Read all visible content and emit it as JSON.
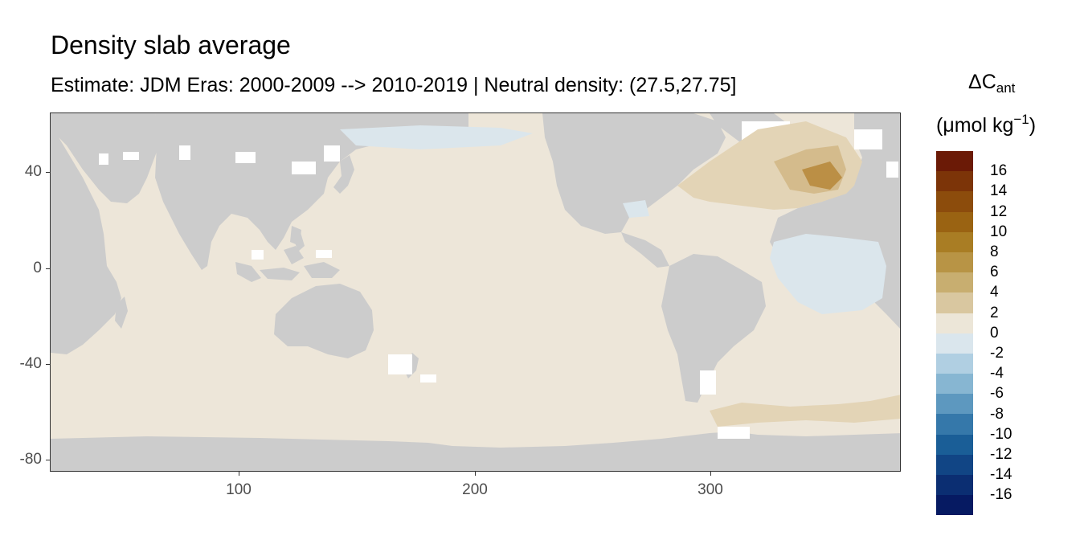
{
  "title": "Density slab average",
  "subtitle": "Estimate: JDM Eras: 2000-2009 --> 2010-2019 | Neutral density: (27.5,27.75]",
  "legend": {
    "title_symbol": "ΔC",
    "title_sub": "ant",
    "unit_prefix": "(μmol kg",
    "unit_exp": "−1",
    "unit_suffix": ")",
    "colors": [
      "#6b1a06",
      "#7c3408",
      "#8c4c0c",
      "#9a6312",
      "#a97d24",
      "#b89445",
      "#c8ae70",
      "#d9c7a0",
      "#ece6d8",
      "#dae6ed",
      "#b0cfe2",
      "#87b6d2",
      "#5d98bf",
      "#3578aa",
      "#1a5e97",
      "#114585",
      "#0b2e72",
      "#061a62"
    ],
    "labels": [
      "16",
      "14",
      "12",
      "10",
      "8",
      "6",
      "4",
      "2",
      "0",
      "-2",
      "-4",
      "-6",
      "-8",
      "-10",
      "-12",
      "-14",
      "-16"
    ]
  },
  "axes": {
    "x_ticks": [
      "100",
      "200",
      "300"
    ],
    "y_ticks": [
      "40",
      "0",
      "-40",
      "-80"
    ]
  },
  "map_colors": {
    "land": "#cccccc",
    "ocean_base": "#ede6d9",
    "no_data": "#ffffff",
    "positive_low": "#e3d4b6",
    "positive_mid": "#d4bb8c",
    "positive_high": "#bb8f45",
    "negative_low": "#dbe6ec"
  }
}
